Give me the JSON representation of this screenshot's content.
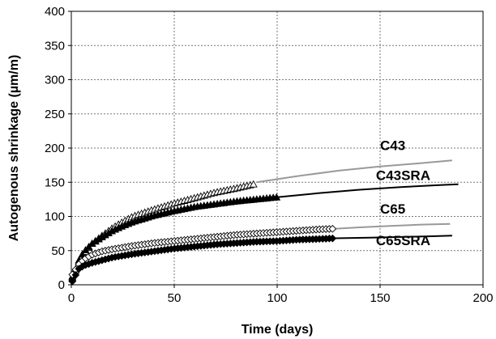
{
  "chart_data": {
    "type": "scatter",
    "xlabel": "Time (days)",
    "ylabel": "Autogenous shrinkage (µm/m)",
    "xlim": [
      0,
      200
    ],
    "ylim": [
      0,
      400
    ],
    "xticks": [
      0,
      50,
      100,
      150,
      200
    ],
    "yticks": [
      0,
      50,
      100,
      150,
      200,
      250,
      300,
      350,
      400
    ],
    "grid": true,
    "series": [
      {
        "name": "C43",
        "color": "#000000",
        "marker": "open-triangle",
        "measured": [
          [
            1,
            10
          ],
          [
            3,
            30
          ],
          [
            6,
            45
          ],
          [
            10,
            60
          ],
          [
            15,
            72
          ],
          [
            20,
            83
          ],
          [
            25,
            92
          ],
          [
            30,
            100
          ],
          [
            40,
            110
          ],
          [
            50,
            119
          ],
          [
            60,
            127
          ],
          [
            70,
            135
          ],
          [
            80,
            141
          ],
          [
            90,
            148
          ]
        ],
        "fit_color": "#999999",
        "fit": [
          [
            90,
            150
          ],
          [
            110,
            159
          ],
          [
            130,
            167
          ],
          [
            150,
            173
          ],
          [
            170,
            178
          ],
          [
            185,
            182
          ]
        ]
      },
      {
        "name": "C43SRA",
        "color": "#000000",
        "marker": "filled-triangle",
        "measured": [
          [
            1,
            12
          ],
          [
            3,
            32
          ],
          [
            6,
            48
          ],
          [
            10,
            60
          ],
          [
            15,
            70
          ],
          [
            20,
            79
          ],
          [
            25,
            86
          ],
          [
            30,
            92
          ],
          [
            40,
            101
          ],
          [
            50,
            108
          ],
          [
            60,
            114
          ],
          [
            70,
            118
          ],
          [
            80,
            122
          ],
          [
            90,
            125
          ],
          [
            100,
            128
          ]
        ],
        "fit_color": "#000000",
        "fit": [
          [
            100,
            128
          ],
          [
            120,
            134
          ],
          [
            140,
            139
          ],
          [
            160,
            143
          ],
          [
            180,
            146
          ],
          [
            188,
            147
          ]
        ]
      },
      {
        "name": "C65",
        "color": "#000000",
        "marker": "open-diamond",
        "measured": [
          [
            1,
            15
          ],
          [
            3,
            28
          ],
          [
            6,
            37
          ],
          [
            10,
            44
          ],
          [
            15,
            49
          ],
          [
            20,
            52
          ],
          [
            30,
            57
          ],
          [
            40,
            61
          ],
          [
            50,
            64
          ],
          [
            60,
            67
          ],
          [
            70,
            70
          ],
          [
            80,
            73
          ],
          [
            90,
            75
          ],
          [
            100,
            77
          ],
          [
            110,
            79
          ],
          [
            120,
            81
          ],
          [
            128,
            82
          ]
        ],
        "fit_color": "#999999",
        "fit": [
          [
            128,
            82
          ],
          [
            140,
            84
          ],
          [
            155,
            86
          ],
          [
            170,
            88
          ],
          [
            184,
            89
          ]
        ]
      },
      {
        "name": "C65SRA",
        "color": "#000000",
        "marker": "filled-diamond",
        "measured": [
          [
            1,
            5
          ],
          [
            3,
            22
          ],
          [
            6,
            28
          ],
          [
            10,
            32
          ],
          [
            15,
            36
          ],
          [
            20,
            40
          ],
          [
            30,
            45
          ],
          [
            40,
            49
          ],
          [
            50,
            53
          ],
          [
            60,
            56
          ],
          [
            70,
            59
          ],
          [
            80,
            61
          ],
          [
            90,
            63
          ],
          [
            100,
            64
          ],
          [
            110,
            66
          ],
          [
            120,
            67
          ],
          [
            128,
            68
          ]
        ],
        "fit_color": "#000000",
        "fit": [
          [
            128,
            68
          ],
          [
            145,
            69
          ],
          [
            160,
            70
          ],
          [
            175,
            71
          ],
          [
            185,
            72
          ]
        ]
      }
    ],
    "annotations": [
      {
        "text": "C43",
        "x": 150,
        "y": 197
      },
      {
        "text": "C43SRA",
        "x": 148,
        "y": 153
      },
      {
        "text": "C65",
        "x": 150,
        "y": 104
      },
      {
        "text": "C65SRA",
        "x": 148,
        "y": 58
      }
    ]
  }
}
